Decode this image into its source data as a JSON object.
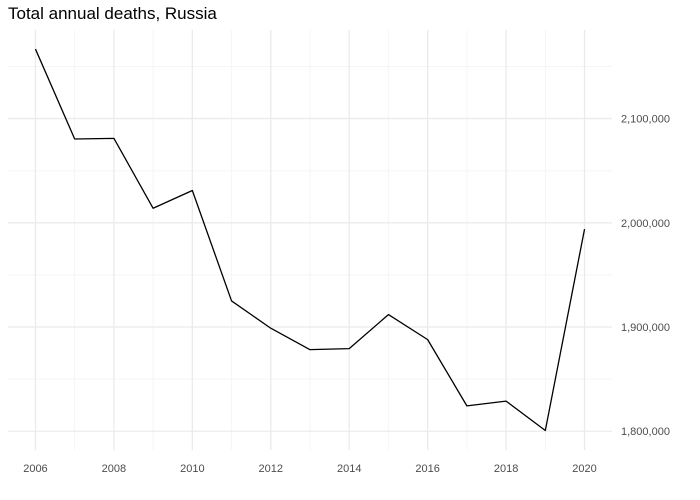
{
  "chart_data": {
    "type": "line",
    "title": "Total annual deaths, Russia",
    "xlabel": "",
    "ylabel": "",
    "x": [
      2006,
      2007,
      2008,
      2009,
      2010,
      2011,
      2012,
      2013,
      2014,
      2015,
      2016,
      2017,
      2018,
      2019,
      2020
    ],
    "series": [
      {
        "values": [
          2166703,
          2080445,
          2081048,
          2013954,
          2031020,
          1925001,
          1898836,
          1878292,
          1879286,
          1911928,
          1887913,
          1824340,
          1828910,
          1800699,
          1993990
        ]
      }
    ],
    "x_ticks": [
      2006,
      2008,
      2010,
      2012,
      2014,
      2016,
      2018,
      2020
    ],
    "x_tick_labels": [
      "2006",
      "2008",
      "2010",
      "2012",
      "2014",
      "2016",
      "2018",
      "2020"
    ],
    "y_ticks": [
      1800000,
      1900000,
      2000000,
      2100000
    ],
    "y_tick_labels": [
      "1,800,000",
      "1,900,000",
      "2,000,000",
      "2,100,000"
    ],
    "xlim": [
      2005.3,
      2020.7
    ],
    "ylim": [
      1782000,
      2185000
    ],
    "y_axis_side": "right",
    "grid": true,
    "legend": "none",
    "colors": {
      "line": "#000000",
      "grid_major": "#ebebeb",
      "grid_minor": "#f5f5f5",
      "tick_text": "#4d4d4d"
    }
  }
}
